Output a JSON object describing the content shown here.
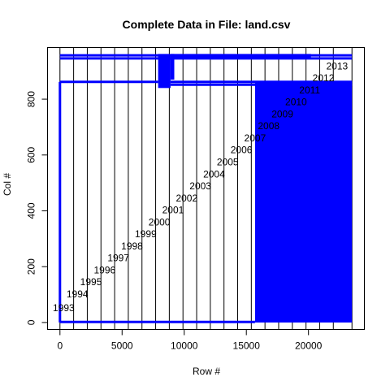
{
  "chart_data": {
    "type": "line",
    "title": "Complete Data in File: land.csv",
    "xlabel": "Row #",
    "ylabel": "Col #",
    "xlim": [
      -1000,
      24500
    ],
    "ylim": [
      -25,
      985
    ],
    "xticks": [
      0,
      5000,
      10000,
      15000,
      20000
    ],
    "yticks": [
      0,
      200,
      400,
      600,
      800
    ],
    "xtick_labels": [
      "0",
      "5000",
      "10000",
      "15000",
      "20000"
    ],
    "ytick_labels": [
      "0",
      "200",
      "400",
      "600",
      "800"
    ],
    "year_boundaries": [
      0,
      1100,
      2200,
      3300,
      4400,
      5500,
      6600,
      7700,
      8800,
      9900,
      11000,
      12100,
      13200,
      14300,
      15400,
      16500,
      17600,
      18700,
      19800,
      20900,
      22000,
      23500
    ],
    "year_labels": [
      {
        "text": "1993",
        "x": 300,
        "y": 40
      },
      {
        "text": "1994",
        "x": 1400,
        "y": 90
      },
      {
        "text": "1995",
        "x": 2500,
        "y": 133
      },
      {
        "text": "1996",
        "x": 3600,
        "y": 176
      },
      {
        "text": "1997",
        "x": 4700,
        "y": 219
      },
      {
        "text": "1998",
        "x": 5800,
        "y": 262
      },
      {
        "text": "1999",
        "x": 6900,
        "y": 305
      },
      {
        "text": "2000",
        "x": 8000,
        "y": 348
      },
      {
        "text": "2001",
        "x": 9100,
        "y": 391
      },
      {
        "text": "2002",
        "x": 10200,
        "y": 434
      },
      {
        "text": "2003",
        "x": 11300,
        "y": 477
      },
      {
        "text": "2004",
        "x": 12400,
        "y": 520
      },
      {
        "text": "2005",
        "x": 13500,
        "y": 563
      },
      {
        "text": "2006",
        "x": 14600,
        "y": 606
      },
      {
        "text": "2007",
        "x": 15700,
        "y": 649
      },
      {
        "text": "2008",
        "x": 16800,
        "y": 692
      },
      {
        "text": "2009",
        "x": 17900,
        "y": 735
      },
      {
        "text": "2010",
        "x": 19000,
        "y": 778
      },
      {
        "text": "2011",
        "x": 20100,
        "y": 821
      },
      {
        "text": "2012",
        "x": 21200,
        "y": 864
      },
      {
        "text": "2013",
        "x": 22300,
        "y": 907
      }
    ],
    "blue_segments": [
      {
        "x0": 0,
        "x1": 23500,
        "y0": 957,
        "y1": 957
      },
      {
        "x0": 0,
        "x1": 23500,
        "y0": 946,
        "y1": 946
      },
      {
        "x0": 0,
        "x1": 7900,
        "y0": 862,
        "y1": 862
      },
      {
        "x0": 8900,
        "x1": 23500,
        "y0": 862,
        "y1": 862
      },
      {
        "x0": 8900,
        "x1": 23500,
        "y0": 852,
        "y1": 852
      },
      {
        "x0": 0,
        "x1": 15700,
        "y0": 2,
        "y1": 2
      },
      {
        "x0": 0,
        "x1": 0,
        "y0": 0,
        "y1": 862
      }
    ],
    "blue_blocks": [
      {
        "x0": 7900,
        "x1": 8900,
        "y0": 840,
        "y1": 962
      },
      {
        "x0": 8900,
        "x1": 9200,
        "y0": 870,
        "y1": 962
      },
      {
        "x0": 8900,
        "x1": 20200,
        "y0": 946,
        "y1": 962
      },
      {
        "x0": 15700,
        "x1": 23500,
        "y0": 0,
        "y1": 862
      }
    ],
    "color": "#0000ff",
    "grid": false
  }
}
